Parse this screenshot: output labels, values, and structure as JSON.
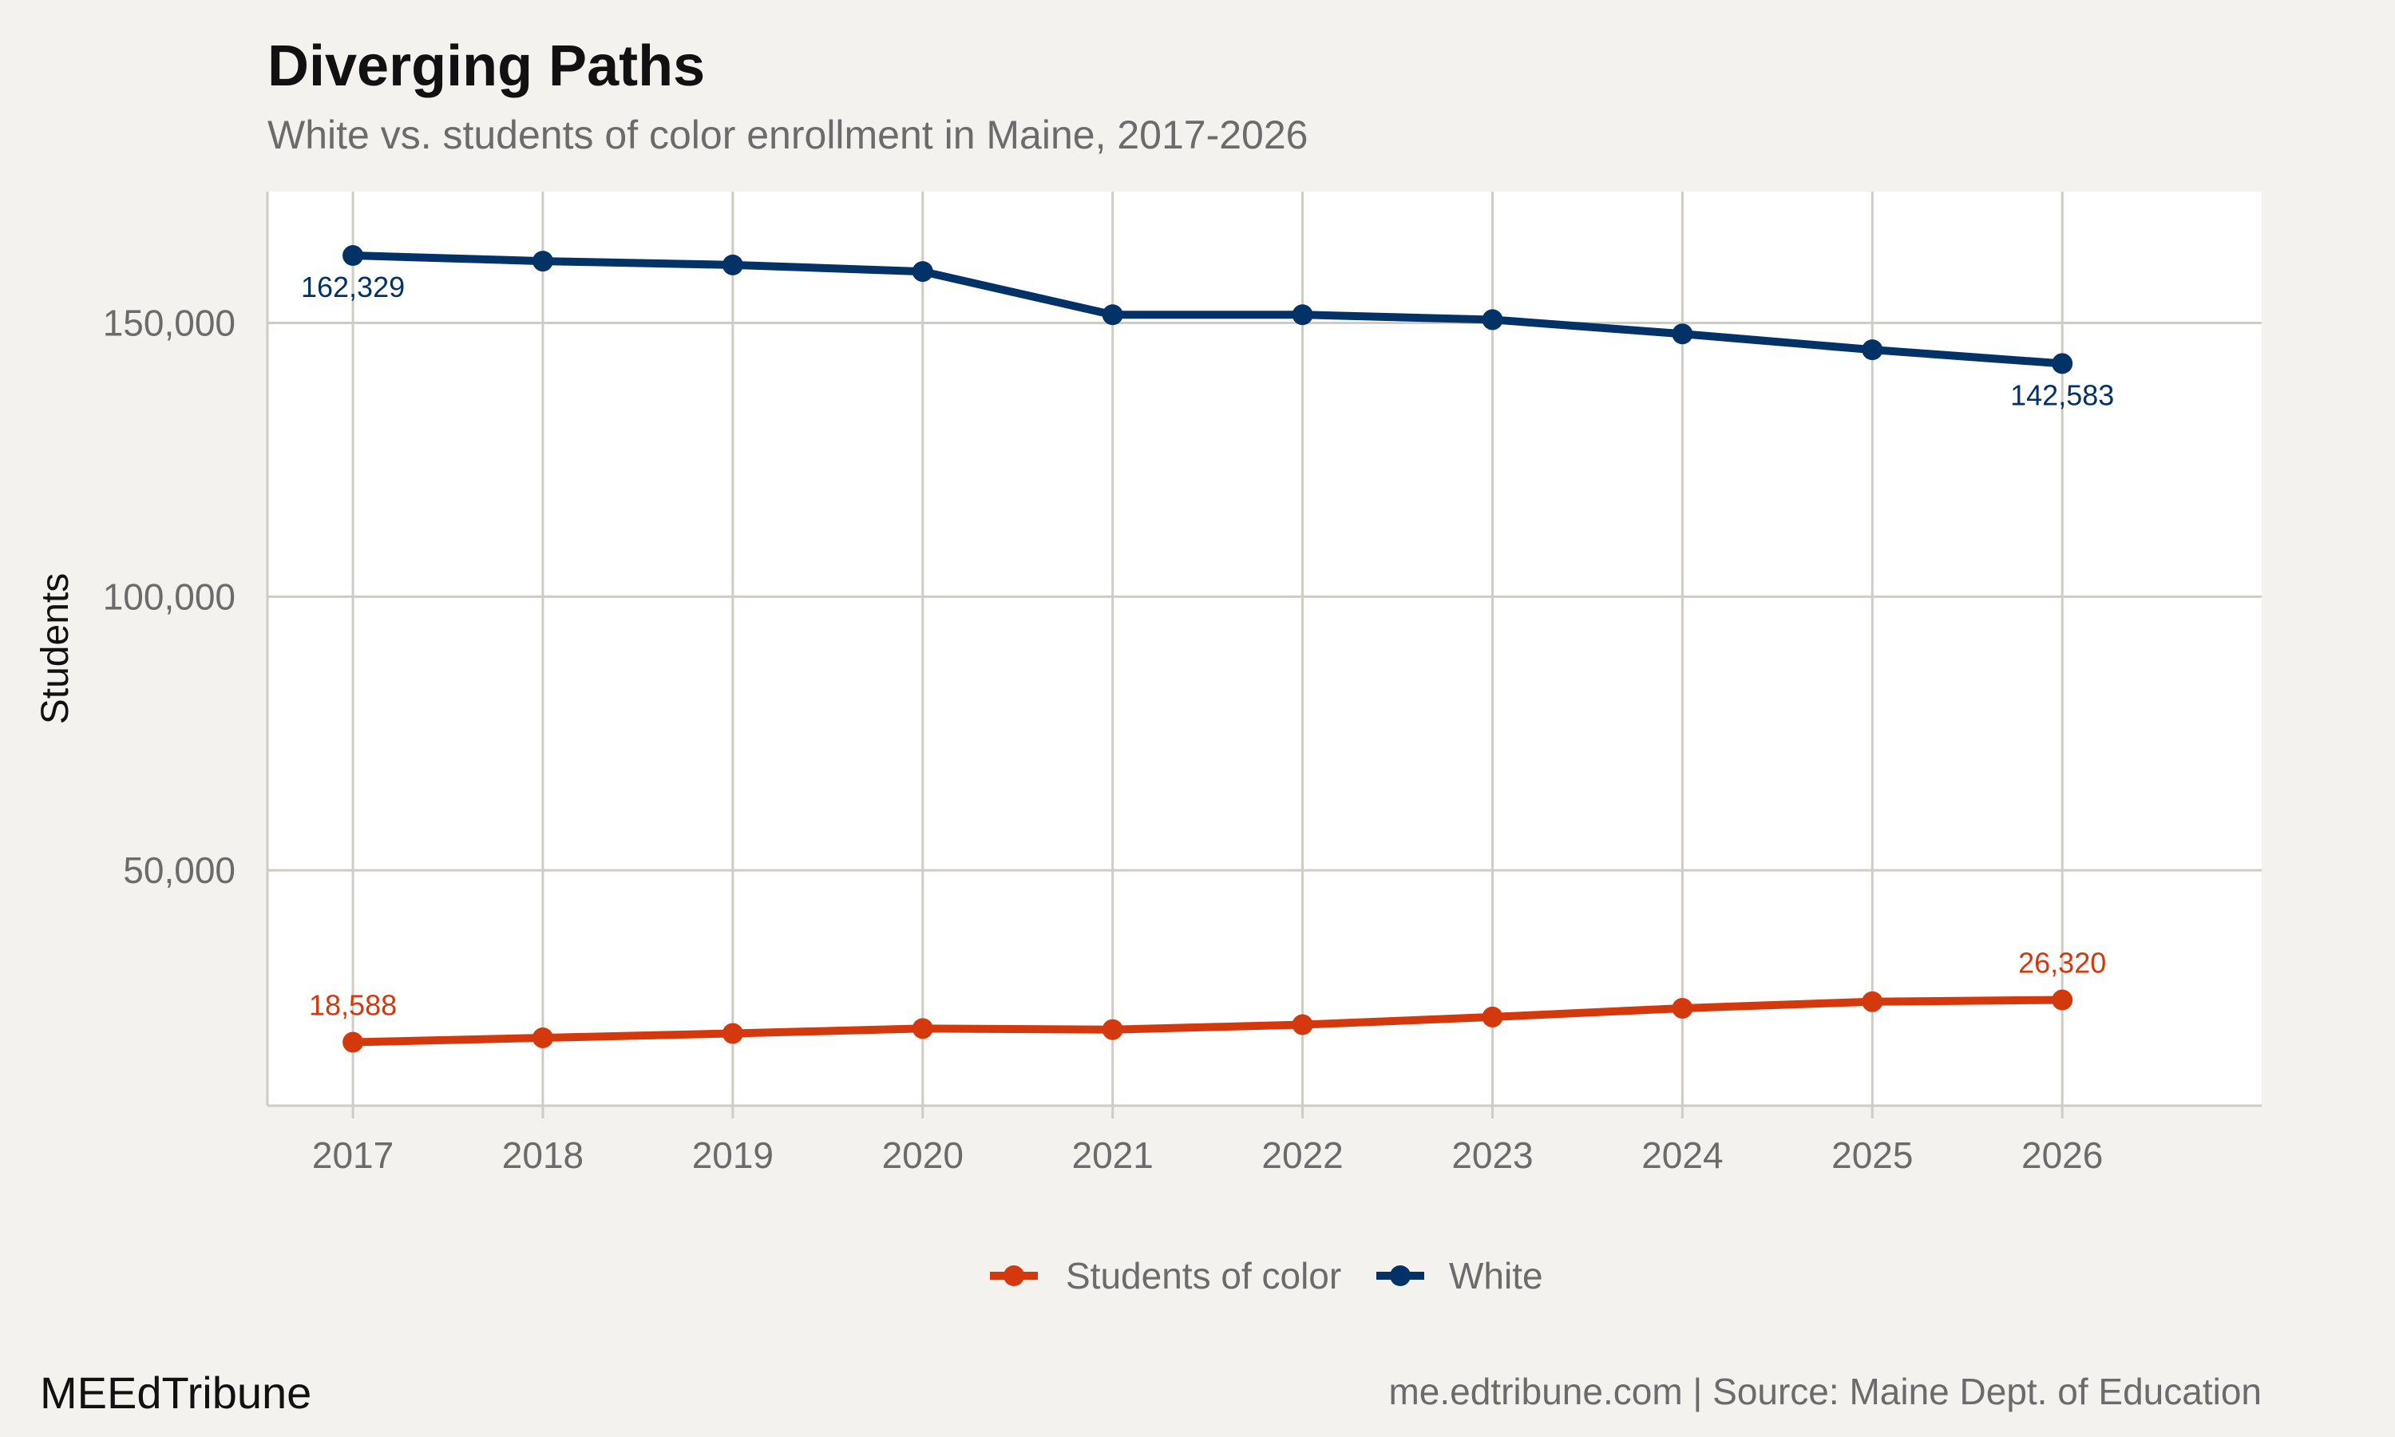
{
  "chart_data": {
    "type": "line",
    "title": "Diverging Paths",
    "subtitle": "White vs. students of color enrollment in Maine, 2017-2026",
    "xlabel": "",
    "ylabel": "Students",
    "x": [
      2017,
      2018,
      2019,
      2020,
      2021,
      2022,
      2023,
      2024,
      2025,
      2026
    ],
    "x_tick_labels": [
      "2017",
      "2018",
      "2019",
      "2020",
      "2021",
      "2022",
      "2023",
      "2024",
      "2025",
      "2026"
    ],
    "y_ticks": [
      50000,
      100000,
      150000
    ],
    "y_tick_labels": [
      "50,000",
      "100,000",
      "150,000"
    ],
    "ylim": [
      7000,
      174000
    ],
    "xlim": [
      2016.55,
      2027.05
    ],
    "grid": true,
    "legend_position": "bottom",
    "series": [
      {
        "name": "Students of color",
        "color": "#d4380d",
        "values": [
          18588,
          19400,
          20200,
          21100,
          20900,
          21800,
          23200,
          24800,
          26000,
          26320
        ],
        "end_labels": {
          "first": "18,588",
          "last": "26,320"
        }
      },
      {
        "name": "White",
        "color": "#033266",
        "values": [
          162329,
          161300,
          160600,
          159400,
          151500,
          151500,
          150600,
          148000,
          145100,
          142583
        ],
        "end_labels": {
          "first": "162,329",
          "last": "142,583"
        }
      }
    ]
  },
  "footer": {
    "brand": "MEEdTribune",
    "source": "me.edtribune.com | Source: Maine Dept. of Education"
  },
  "colors": {
    "background": "#f4f2ee",
    "panel": "#ffffff",
    "grid": "#cfcbc5",
    "axis_text": "#6b6b6b"
  }
}
